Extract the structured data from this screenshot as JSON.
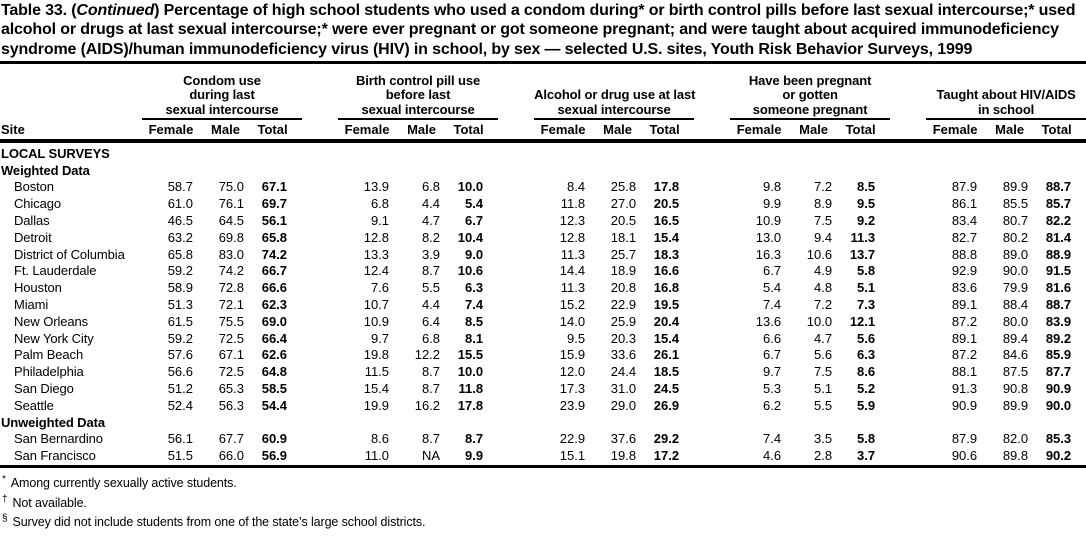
{
  "title": {
    "part1": "Table 33. (",
    "continued": "Continued",
    "part2": ") Percentage of high school students who used a condom during* or birth control pills before last sexual intercourse;* used alcohol or drugs at last sexual intercourse;* were ever pregnant or got someone pregnant; and were taught about acquired immunodeficiency syndrome (AIDS)/human immunodeficiency virus (HIV) in school, by sex — selected U.S. sites, Youth Risk Behavior Surveys, 1999"
  },
  "table": {
    "site_header": "Site",
    "sub_headers": [
      "Female",
      "Male",
      "Total"
    ],
    "groups": [
      {
        "label_lines": [
          "Condom use",
          "during last",
          "sexual intercourse"
        ]
      },
      {
        "label_lines": [
          "Birth control pill use",
          "before last",
          "sexual intercourse"
        ]
      },
      {
        "label_lines": [
          "Alcohol or drug use at last",
          "sexual intercourse"
        ]
      },
      {
        "label_lines": [
          "Have been pregnant",
          "or gotten",
          "someone pregnant"
        ]
      },
      {
        "label_lines": [
          "Taught about HIV/AIDS",
          "in school"
        ]
      }
    ],
    "rows": [
      {
        "type": "section",
        "label": "LOCAL SURVEYS"
      },
      {
        "type": "subsection",
        "label": "Weighted Data"
      },
      {
        "type": "data",
        "site": "Boston",
        "values": [
          "58.7",
          "75.0",
          "67.1",
          "13.9",
          "6.8",
          "10.0",
          "8.4",
          "25.8",
          "17.8",
          "9.8",
          "7.2",
          "8.5",
          "87.9",
          "89.9",
          "88.7"
        ]
      },
      {
        "type": "data",
        "site": "Chicago",
        "values": [
          "61.0",
          "76.1",
          "69.7",
          "6.8",
          "4.4",
          "5.4",
          "11.8",
          "27.0",
          "20.5",
          "9.9",
          "8.9",
          "9.5",
          "86.1",
          "85.5",
          "85.7"
        ]
      },
      {
        "type": "data",
        "site": "Dallas",
        "values": [
          "46.5",
          "64.5",
          "56.1",
          "9.1",
          "4.7",
          "6.7",
          "12.3",
          "20.5",
          "16.5",
          "10.9",
          "7.5",
          "9.2",
          "83.4",
          "80.7",
          "82.2"
        ]
      },
      {
        "type": "data",
        "site": "Detroit",
        "values": [
          "63.2",
          "69.8",
          "65.8",
          "12.8",
          "8.2",
          "10.4",
          "12.8",
          "18.1",
          "15.4",
          "13.0",
          "9.4",
          "11.3",
          "82.7",
          "80.2",
          "81.4"
        ]
      },
      {
        "type": "data",
        "site": "District of Columbia",
        "values": [
          "65.8",
          "83.0",
          "74.2",
          "13.3",
          "3.9",
          "9.0",
          "11.3",
          "25.7",
          "18.3",
          "16.3",
          "10.6",
          "13.7",
          "88.8",
          "89.0",
          "88.9"
        ]
      },
      {
        "type": "data",
        "site": "Ft. Lauderdale",
        "values": [
          "59.2",
          "74.2",
          "66.7",
          "12.4",
          "8.7",
          "10.6",
          "14.4",
          "18.9",
          "16.6",
          "6.7",
          "4.9",
          "5.8",
          "92.9",
          "90.0",
          "91.5"
        ]
      },
      {
        "type": "data",
        "site": "Houston",
        "values": [
          "58.9",
          "72.8",
          "66.6",
          "7.6",
          "5.5",
          "6.3",
          "11.3",
          "20.8",
          "16.8",
          "5.4",
          "4.8",
          "5.1",
          "83.6",
          "79.9",
          "81.6"
        ]
      },
      {
        "type": "data",
        "site": "Miami",
        "values": [
          "51.3",
          "72.1",
          "62.3",
          "10.7",
          "4.4",
          "7.4",
          "15.2",
          "22.9",
          "19.5",
          "7.4",
          "7.2",
          "7.3",
          "89.1",
          "88.4",
          "88.7"
        ]
      },
      {
        "type": "data",
        "site": "New Orleans",
        "values": [
          "61.5",
          "75.5",
          "69.0",
          "10.9",
          "6.4",
          "8.5",
          "14.0",
          "25.9",
          "20.4",
          "13.6",
          "10.0",
          "12.1",
          "87.2",
          "80.0",
          "83.9"
        ]
      },
      {
        "type": "data",
        "site": "New York City",
        "values": [
          "59.2",
          "72.5",
          "66.4",
          "9.7",
          "6.8",
          "8.1",
          "9.5",
          "20.3",
          "15.4",
          "6.6",
          "4.7",
          "5.6",
          "89.1",
          "89.4",
          "89.2"
        ]
      },
      {
        "type": "data",
        "site": "Palm Beach",
        "values": [
          "57.6",
          "67.1",
          "62.6",
          "19.8",
          "12.2",
          "15.5",
          "15.9",
          "33.6",
          "26.1",
          "6.7",
          "5.6",
          "6.3",
          "87.2",
          "84.6",
          "85.9"
        ]
      },
      {
        "type": "data",
        "site": "Philadelphia",
        "values": [
          "56.6",
          "72.5",
          "64.8",
          "11.5",
          "8.7",
          "10.0",
          "12.0",
          "24.4",
          "18.5",
          "9.7",
          "7.5",
          "8.6",
          "88.1",
          "87.5",
          "87.7"
        ]
      },
      {
        "type": "data",
        "site": "San Diego",
        "values": [
          "51.2",
          "65.3",
          "58.5",
          "15.4",
          "8.7",
          "11.8",
          "17.3",
          "31.0",
          "24.5",
          "5.3",
          "5.1",
          "5.2",
          "91.3",
          "90.8",
          "90.9"
        ]
      },
      {
        "type": "data",
        "site": "Seattle",
        "values": [
          "52.4",
          "56.3",
          "54.4",
          "19.9",
          "16.2",
          "17.8",
          "23.9",
          "29.0",
          "26.9",
          "6.2",
          "5.5",
          "5.9",
          "90.9",
          "89.9",
          "90.0"
        ]
      },
      {
        "type": "subsection",
        "label": "Unweighted Data"
      },
      {
        "type": "data",
        "site": "San Bernardino",
        "values": [
          "56.1",
          "67.7",
          "60.9",
          "8.6",
          "8.7",
          "8.7",
          "22.9",
          "37.6",
          "29.2",
          "7.4",
          "3.5",
          "5.8",
          "87.9",
          "82.0",
          "85.3"
        ]
      },
      {
        "type": "data",
        "site": "San Francisco",
        "values": [
          "51.5",
          "66.0",
          "56.9",
          "11.0",
          "NA",
          "9.9",
          "15.1",
          "19.8",
          "17.2",
          "4.6",
          "2.8",
          "3.7",
          "90.6",
          "89.8",
          "90.2"
        ]
      }
    ]
  },
  "footnotes": [
    {
      "symbol": "*",
      "text": "Among currently sexually active students."
    },
    {
      "symbol": "†",
      "text": "Not available."
    },
    {
      "symbol": "§",
      "text": "Survey did not include students from one of the state’s large school districts."
    }
  ]
}
